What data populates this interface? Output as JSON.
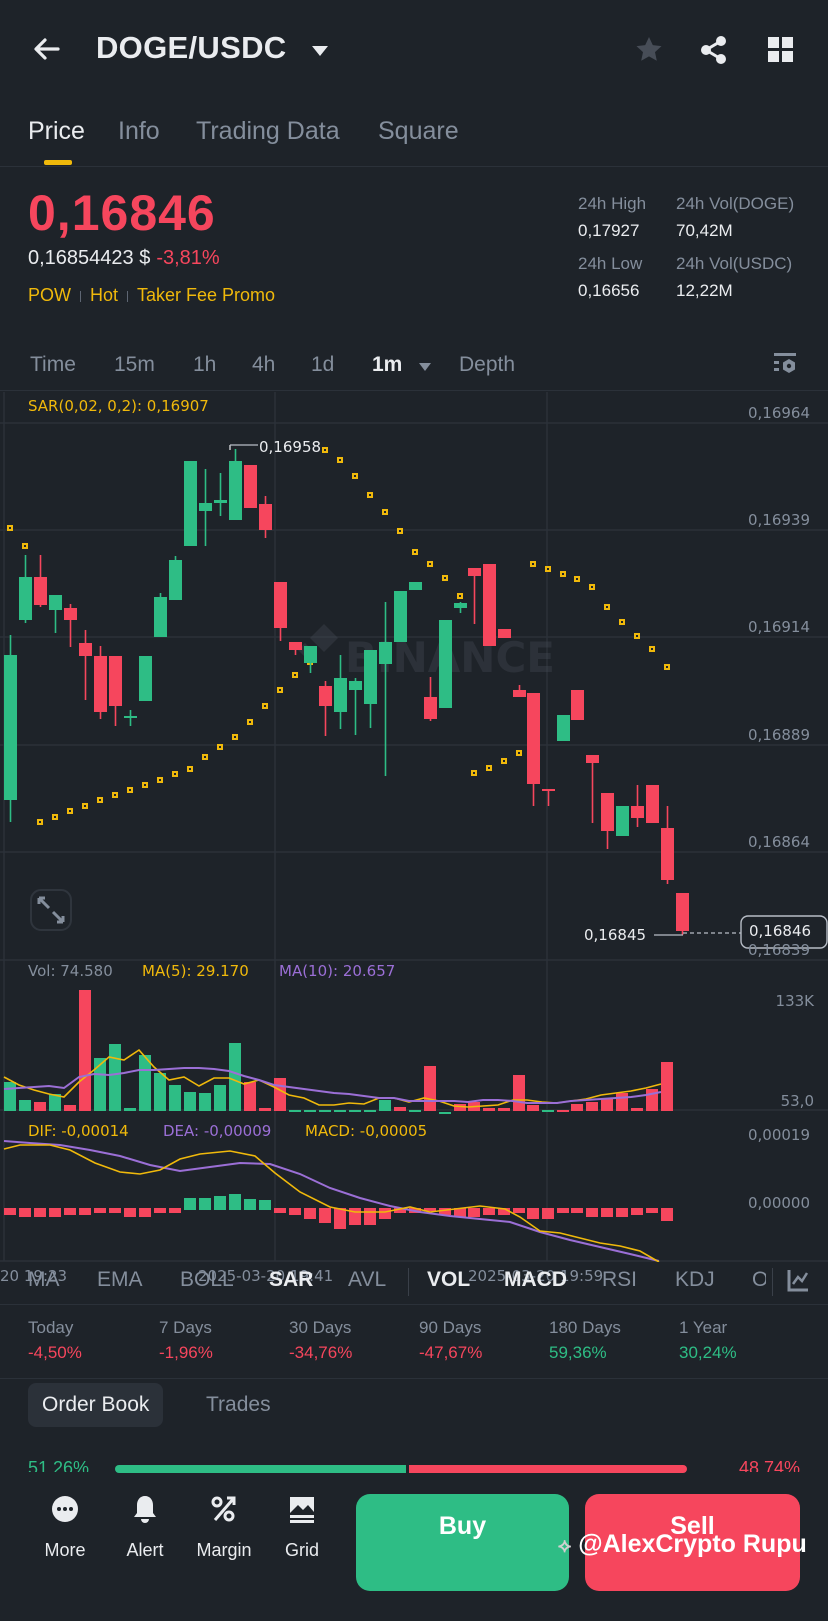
{
  "header": {
    "pair": "DOGE/USDC",
    "icons": [
      "back-arrow-icon",
      "star-icon",
      "share-icon",
      "grid-icon"
    ]
  },
  "tabs": [
    {
      "label": "Price",
      "active": true
    },
    {
      "label": "Info",
      "active": false
    },
    {
      "label": "Trading Data",
      "active": false
    },
    {
      "label": "Square",
      "active": false
    }
  ],
  "price": {
    "last": "0,16846",
    "usd": "0,16854423 $",
    "change": "-3,81%",
    "tags": [
      "POW",
      "Hot",
      "Taker Fee Promo"
    ]
  },
  "stats": {
    "high_label": "24h High",
    "high": "0,17927",
    "low_label": "24h Low",
    "low": "0,16656",
    "vol_doge_label": "24h Vol(DOGE)",
    "vol_doge": "70,42M",
    "vol_usdc_label": "24h Vol(USDC)",
    "vol_usdc": "12,22M"
  },
  "intervals": [
    {
      "label": "Time",
      "active": false
    },
    {
      "label": "15m",
      "active": false
    },
    {
      "label": "1h",
      "active": false
    },
    {
      "label": "4h",
      "active": false
    },
    {
      "label": "1d",
      "active": false
    },
    {
      "label": "1m",
      "active": true
    },
    {
      "label": "Depth",
      "active": false
    }
  ],
  "chart": {
    "sar_label": "SAR(0,02, 0,2): 0,16907",
    "y_ticks": [
      "0,16964",
      "0,16939",
      "0,16914",
      "0,16889",
      "0,16864",
      "0,16839"
    ],
    "high_marker": "0,16958",
    "low_marker": "0,16845",
    "current_price_tag": "0,16846",
    "watermark": "BINANCE",
    "vol_label": "Vol: 74.580",
    "ma5_label": "MA(5): 29.170",
    "ma10_label": "MA(10): 20.657",
    "vol_ticks": [
      "133K",
      "53,0"
    ],
    "dif_label": "DIF: -0,00014",
    "dea_label": "DEA: -0,00009",
    "macd_label": "MACD: -0,00005",
    "macd_ticks": [
      "0,00019",
      "0,00000"
    ],
    "x_ticks": [
      "20 19:23",
      "2025-03-20 19:41",
      "2025-03-20 19:59"
    ],
    "colors": {
      "up": "#2ebd85",
      "down": "#f6465d",
      "sar": "#f0b90b",
      "ma10": "#9b6fd6"
    }
  },
  "indicators": [
    {
      "label": "MA",
      "active": false
    },
    {
      "label": "EMA",
      "active": false
    },
    {
      "label": "BOLL",
      "active": false
    },
    {
      "label": "SAR",
      "active": true
    },
    {
      "label": "AVL",
      "active": false
    },
    {
      "label": "VOL",
      "active": true
    },
    {
      "label": "MACD",
      "active": true
    },
    {
      "label": "RSI",
      "active": false
    },
    {
      "label": "KDJ",
      "active": false
    },
    {
      "label": "O",
      "active": false
    }
  ],
  "performance": [
    {
      "label": "Today",
      "value": "-4,50%",
      "dir": "down"
    },
    {
      "label": "7 Days",
      "value": "-1,96%",
      "dir": "down"
    },
    {
      "label": "30 Days",
      "value": "-34,76%",
      "dir": "down"
    },
    {
      "label": "90 Days",
      "value": "-47,67%",
      "dir": "down"
    },
    {
      "label": "180 Days",
      "value": "59,36%",
      "dir": "up"
    },
    {
      "label": "1 Year",
      "value": "30,24%",
      "dir": "up"
    }
  ],
  "orderbook": {
    "tabs": [
      {
        "label": "Order Book",
        "active": true
      },
      {
        "label": "Trades",
        "active": false
      }
    ],
    "buy_ratio": "51,26%",
    "sell_ratio": "48,74%"
  },
  "bottom_nav": [
    {
      "label": "More",
      "icon": "more-icon"
    },
    {
      "label": "Alert",
      "icon": "bell-icon"
    },
    {
      "label": "Margin",
      "icon": "margin-icon"
    },
    {
      "label": "Grid",
      "icon": "grid-bot-icon"
    }
  ],
  "actions": {
    "buy": "Buy",
    "sell": "Sell"
  },
  "overlay_watermark": "@AlexCrypto Rupu"
}
